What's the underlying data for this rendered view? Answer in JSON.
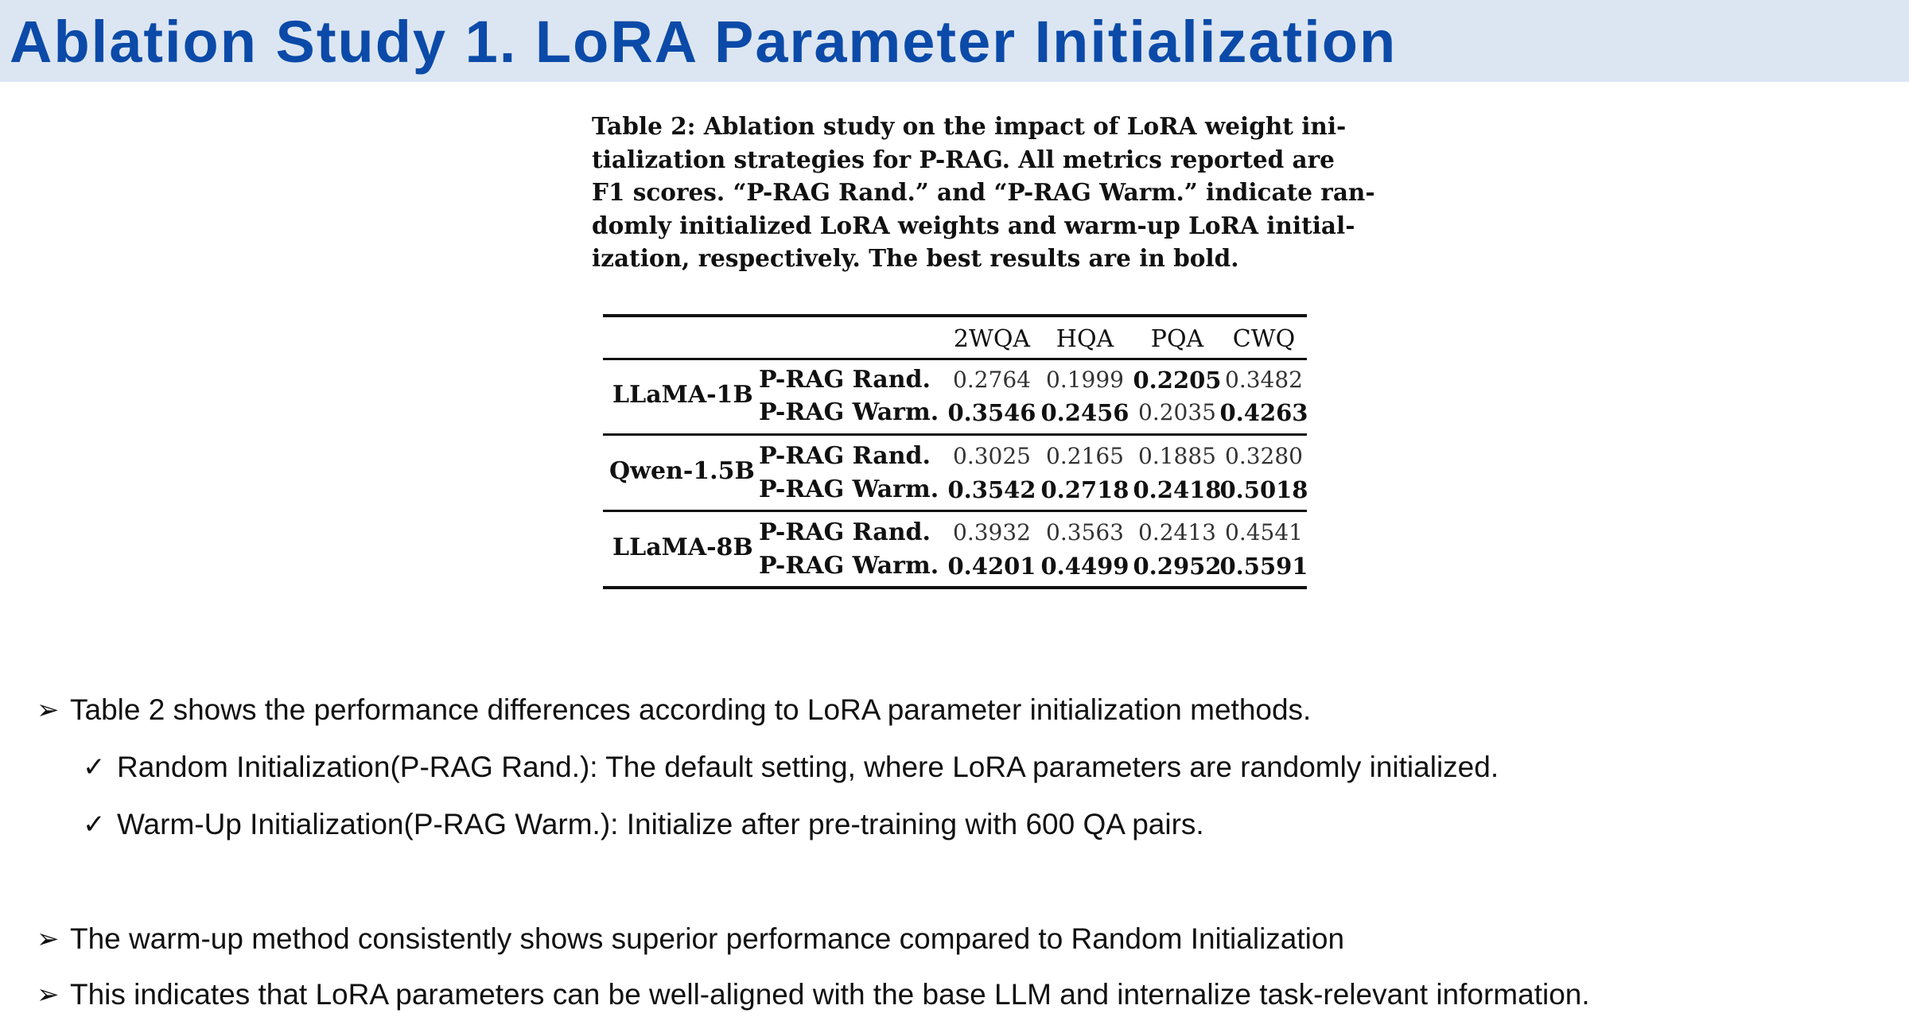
{
  "slide": {
    "title": "Ablation Study 1. LoRA Parameter Initialization"
  },
  "caption": {
    "lines": [
      "Table 2: Ablation study on the impact of LoRA weight ini-",
      "tialization strategies for P-RAG. All metrics reported are",
      "F1 scores. “P-RAG Rand.” and “P-RAG Warm.” indicate ran-",
      "domly initialized LoRA weights and warm-up LoRA initial-",
      "ization, respectively. The best results are in bold."
    ]
  },
  "table": {
    "columns": [
      "2WQA",
      "HQA",
      "PQA",
      "CWQ"
    ],
    "groups": [
      {
        "model": "LLaMA-1B",
        "rows": [
          {
            "method": "P-RAG Rand.",
            "values": [
              "0.2764",
              "0.1999",
              "0.2205",
              "0.3482"
            ],
            "bold": [
              false,
              false,
              true,
              false
            ]
          },
          {
            "method": "P-RAG Warm.",
            "values": [
              "0.3546",
              "0.2456",
              "0.2035",
              "0.4263"
            ],
            "bold": [
              true,
              true,
              false,
              true
            ]
          }
        ]
      },
      {
        "model": "Qwen-1.5B",
        "rows": [
          {
            "method": "P-RAG Rand.",
            "values": [
              "0.3025",
              "0.2165",
              "0.1885",
              "0.3280"
            ],
            "bold": [
              false,
              false,
              false,
              false
            ]
          },
          {
            "method": "P-RAG Warm.",
            "values": [
              "0.3542",
              "0.2718",
              "0.2418",
              "0.5018"
            ],
            "bold": [
              true,
              true,
              true,
              true
            ]
          }
        ]
      },
      {
        "model": "LLaMA-8B",
        "rows": [
          {
            "method": "P-RAG Rand.",
            "values": [
              "0.3932",
              "0.3563",
              "0.2413",
              "0.4541"
            ],
            "bold": [
              false,
              false,
              false,
              false
            ]
          },
          {
            "method": "P-RAG Warm.",
            "values": [
              "0.4201",
              "0.4499",
              "0.2952",
              "0.5591"
            ],
            "bold": [
              true,
              true,
              true,
              true
            ]
          }
        ]
      }
    ]
  },
  "bullets": {
    "arrow_marker": "➢",
    "check_marker": "✓",
    "b1": "Table 2 shows the performance differences according to LoRA parameter initialization methods.",
    "b1_sub1": "Random Initialization(P-RAG Rand.): The default setting, where LoRA parameters are randomly initialized.",
    "b1_sub2": "Warm-Up Initialization(P-RAG Warm.): Initialize after pre-training with 600 QA pairs.",
    "b2": "The warm-up method consistently shows superior performance compared to Random Initialization",
    "b3": "This indicates that LoRA parameters can be well-aligned with the base LLM and internalize task-relevant information."
  },
  "colors": {
    "title_text": "#0b4aa8",
    "title_band": "#dce6f2"
  }
}
